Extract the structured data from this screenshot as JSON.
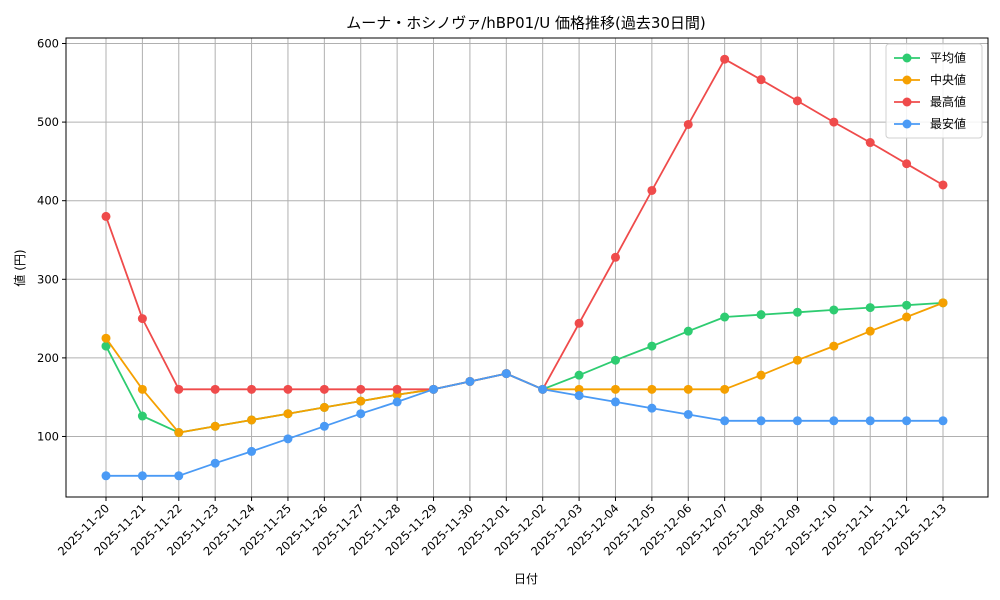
{
  "chart_data": {
    "type": "line",
    "title": "ムーナ・ホシノヴァ/hBP01/U 価格推移(過去30日間)",
    "xlabel": "日付",
    "ylabel": "値 (円)",
    "ylim": [
      23,
      607
    ],
    "yticks": [
      100,
      200,
      300,
      400,
      500,
      600
    ],
    "grid": true,
    "legend_position": "top-right",
    "categories": [
      "2025-11-20",
      "2025-11-21",
      "2025-11-22",
      "2025-11-23",
      "2025-11-24",
      "2025-11-25",
      "2025-11-26",
      "2025-11-27",
      "2025-11-28",
      "2025-11-29",
      "2025-11-30",
      "2025-12-01",
      "2025-12-02",
      "2025-12-03",
      "2025-12-04",
      "2025-12-05",
      "2025-12-06",
      "2025-12-07",
      "2025-12-08",
      "2025-12-09",
      "2025-12-10",
      "2025-12-11",
      "2025-12-12",
      "2025-12-13"
    ],
    "series": [
      {
        "name": "平均値",
        "color": "#2ecc71",
        "values": [
          215,
          126,
          105,
          113,
          121,
          129,
          137,
          145,
          153,
          160,
          170,
          180,
          160,
          178,
          197,
          215,
          234,
          252,
          255,
          258,
          261,
          264,
          267,
          270
        ]
      },
      {
        "name": "中央値",
        "color": "#f5a000",
        "values": [
          225,
          160,
          105,
          113,
          121,
          129,
          137,
          145,
          153,
          160,
          170,
          180,
          160,
          160,
          160,
          160,
          160,
          160,
          178,
          197,
          215,
          234,
          252,
          270
        ]
      },
      {
        "name": "最高値",
        "color": "#ef4b4b",
        "values": [
          380,
          250,
          160,
          160,
          160,
          160,
          160,
          160,
          160,
          160,
          170,
          180,
          160,
          244,
          328,
          413,
          497,
          580,
          554,
          527,
          500,
          474,
          447,
          420
        ]
      },
      {
        "name": "最安値",
        "color": "#4a9af5",
        "values": [
          50,
          50,
          50,
          66,
          81,
          97,
          113,
          129,
          144,
          160,
          170,
          180,
          160,
          152,
          144,
          136,
          128,
          120,
          120,
          120,
          120,
          120,
          120,
          120
        ]
      }
    ]
  }
}
